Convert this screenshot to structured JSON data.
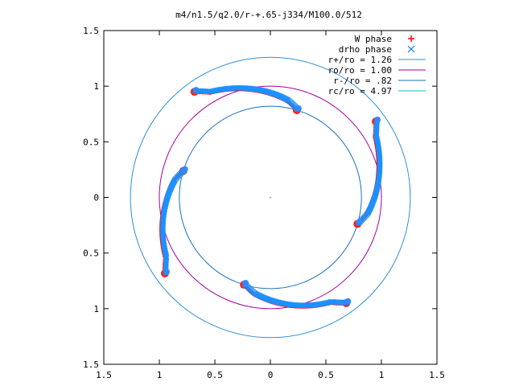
{
  "chart_data": {
    "type": "scatter",
    "title": "m4/n1.5/q2.0/r-+.65-j334/M100.0/512",
    "xlabel": "",
    "ylabel": "",
    "xlim": [
      -1.5,
      1.5
    ],
    "ylim": [
      -1.5,
      1.5
    ],
    "x_ticks": [
      -1.5,
      -1,
      -0.5,
      0,
      0.5,
      1,
      1.5
    ],
    "x_tick_labels": [
      "1.5",
      "1",
      "0.5",
      "0",
      "0.5",
      "1",
      "1.5"
    ],
    "y_ticks": [
      1.5,
      1,
      0.5,
      0,
      -0.5,
      -1,
      -1.5
    ],
    "y_tick_labels": [
      "1.5",
      "1",
      "0.5",
      "0",
      "0.5",
      "1",
      "1.5"
    ],
    "grid": false,
    "legend_position": "top-right",
    "legend": [
      {
        "label": "W phase",
        "marker": "+",
        "color": "#ff0000"
      },
      {
        "label": "drho phase",
        "marker": "x",
        "color": "#0080ff"
      },
      {
        "label": "r+/ro = 1.26",
        "line": true,
        "color": "#2f8fd8"
      },
      {
        "label": "ro/ro = 1.00",
        "line": true,
        "color": "#a000a0"
      },
      {
        "label": "r-/ro = .82",
        "line": true,
        "color": "#1a70c0"
      },
      {
        "label": "rc/ro = 4.97",
        "line": true,
        "color": "#00c8c8"
      }
    ],
    "circles": [
      {
        "name": "r+",
        "radius": 1.26,
        "color": "#2f8fd8"
      },
      {
        "name": "ro",
        "radius": 1.0,
        "color": "#a000a0"
      },
      {
        "name": "r-",
        "radius": 0.82,
        "color": "#1a70c0"
      }
    ],
    "arms": [
      {
        "t0": 80,
        "t1": 120,
        "tip": "in"
      },
      {
        "t0": 170,
        "t1": 210,
        "tip": "out"
      },
      {
        "t0": 260,
        "t1": 300,
        "tip": "in"
      },
      {
        "t0": 350,
        "t1": 390,
        "tip": "out"
      }
    ],
    "colors": {
      "w_phase": "#ff0000",
      "drho_phase": "#1e90ff",
      "axis": "#000000"
    }
  }
}
